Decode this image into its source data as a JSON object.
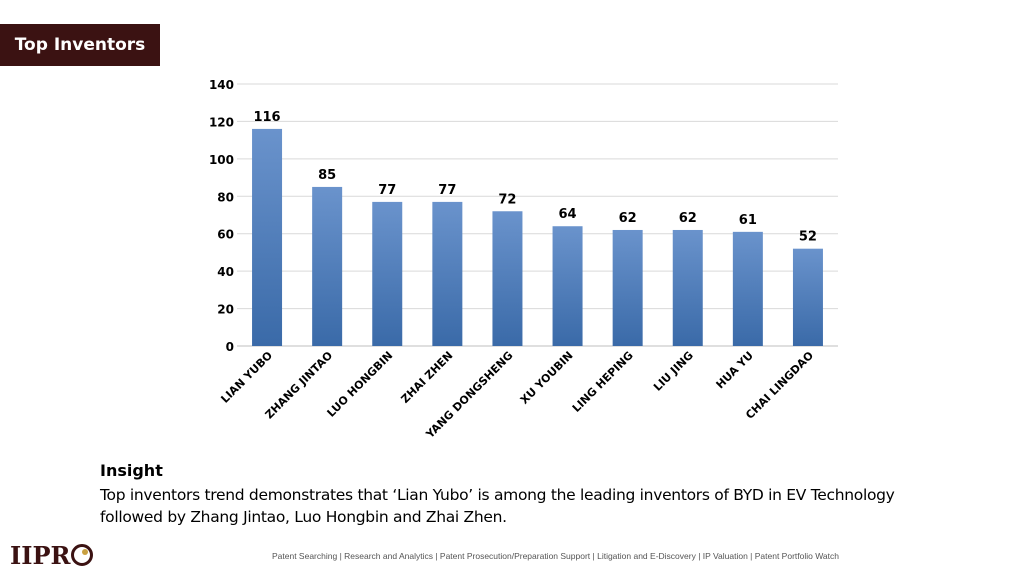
{
  "header": {
    "title": "Top Inventors"
  },
  "colors": {
    "title_bg": "#3b1212",
    "bar": "#4f81bd",
    "bar_dark": "#3a6aa8",
    "grid": "#d9d9d9"
  },
  "chart_data": {
    "type": "bar",
    "title": "",
    "xlabel": "",
    "ylabel": "",
    "categories": [
      "LIAN YUBO",
      "ZHANG JINTAO",
      "LUO HONGBIN",
      "ZHAI ZHEN",
      "YANG DONGSHENG",
      "XU YOUBIN",
      "LING HEPING",
      "LIU JING",
      "HUA YU",
      "CHAI LINGDAO"
    ],
    "values": [
      116,
      85,
      77,
      77,
      72,
      64,
      62,
      62,
      61,
      52
    ],
    "ylim": [
      0,
      140
    ],
    "yticks": [
      0,
      20,
      40,
      60,
      80,
      100,
      120,
      140
    ],
    "grid": true,
    "data_labels": true
  },
  "insight": {
    "heading": "Insight",
    "text": "Top inventors trend demonstrates that ‘Lian Yubo’ is among the leading inventors of BYD in EV Technology followed by Zhang Jintao, Luo Hongbin and Zhai Zhen."
  },
  "logo": {
    "text": "IIPR",
    "icon": "o-logo-icon"
  },
  "footer": {
    "text": "Patent Searching | Research and Analytics | Patent Prosecution/Preparation Support | Litigation and E-Discovery | IP Valuation | Patent Portfolio Watch"
  }
}
